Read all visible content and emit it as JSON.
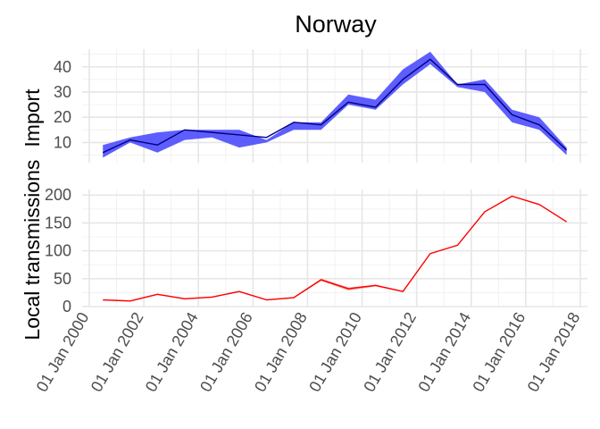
{
  "chart_data": {
    "type": "line",
    "title": "Norway",
    "x_axis": {
      "min": "2000-01-01",
      "max": "2018-01-01",
      "tick_labels": [
        "01 Jan 2000",
        "01 Jan 2002",
        "01 Jan 2004",
        "01 Jan 2006",
        "01 Jan 2008",
        "01 Jan 2010",
        "01 Jan 2012",
        "01 Jan 2014",
        "01 Jan 2016",
        "01 Jan 2018"
      ]
    },
    "ylabel_parts": [
      "Local transmissions",
      "Import"
    ],
    "grid": true,
    "panels": [
      {
        "facet": "Import",
        "ylim": [
          2,
          47
        ],
        "y_ticks": [
          10,
          20,
          30,
          40
        ],
        "line_color": "#000080",
        "ribbon_color": "#4d4dff",
        "x": [
          "2000-07-01",
          "2001-07-01",
          "2002-07-01",
          "2003-07-01",
          "2004-07-01",
          "2005-07-01",
          "2006-07-01",
          "2007-07-01",
          "2008-07-01",
          "2009-07-01",
          "2010-07-01",
          "2011-07-01",
          "2012-07-01",
          "2013-07-01",
          "2014-07-01",
          "2015-07-01",
          "2016-07-01",
          "2017-07-01"
        ],
        "y": [
          6,
          11,
          9,
          15,
          14,
          13,
          12,
          18,
          17,
          26,
          24,
          35,
          43,
          33,
          33,
          21,
          17,
          7
        ],
        "lower": [
          4,
          10,
          6,
          11,
          12,
          8,
          10,
          15,
          15,
          25,
          23,
          33,
          41,
          32,
          30,
          18,
          15,
          5
        ],
        "upper": [
          9,
          12,
          14,
          15,
          15,
          15,
          11,
          18,
          18,
          29,
          27,
          39,
          46,
          33,
          35,
          23,
          20,
          8
        ]
      },
      {
        "facet": "Local transmissions",
        "ylim": [
          0,
          210
        ],
        "y_ticks": [
          0,
          50,
          100,
          150,
          200
        ],
        "line_color": "#ff0000",
        "ribbon_color": "#ff6666",
        "x": [
          "2000-07-01",
          "2001-07-01",
          "2002-07-01",
          "2003-07-01",
          "2004-07-01",
          "2005-07-01",
          "2006-07-01",
          "2007-07-01",
          "2008-07-01",
          "2009-07-01",
          "2010-07-01",
          "2011-07-01",
          "2012-07-01",
          "2013-07-01",
          "2014-07-01",
          "2015-07-01",
          "2016-07-01",
          "2017-07-01"
        ],
        "y": [
          12,
          10,
          22,
          14,
          17,
          27,
          12,
          16,
          48,
          32,
          38,
          27,
          95,
          110,
          170,
          198,
          183,
          152
        ],
        "lower": [
          11,
          9,
          21,
          13,
          16,
          26,
          11,
          15,
          46,
          29,
          36,
          26,
          94,
          109,
          169,
          197,
          182,
          151
        ],
        "upper": [
          13,
          11,
          23,
          15,
          18,
          28,
          13,
          17,
          50,
          34,
          39,
          28,
          96,
          111,
          171,
          199,
          184,
          153
        ]
      }
    ]
  }
}
